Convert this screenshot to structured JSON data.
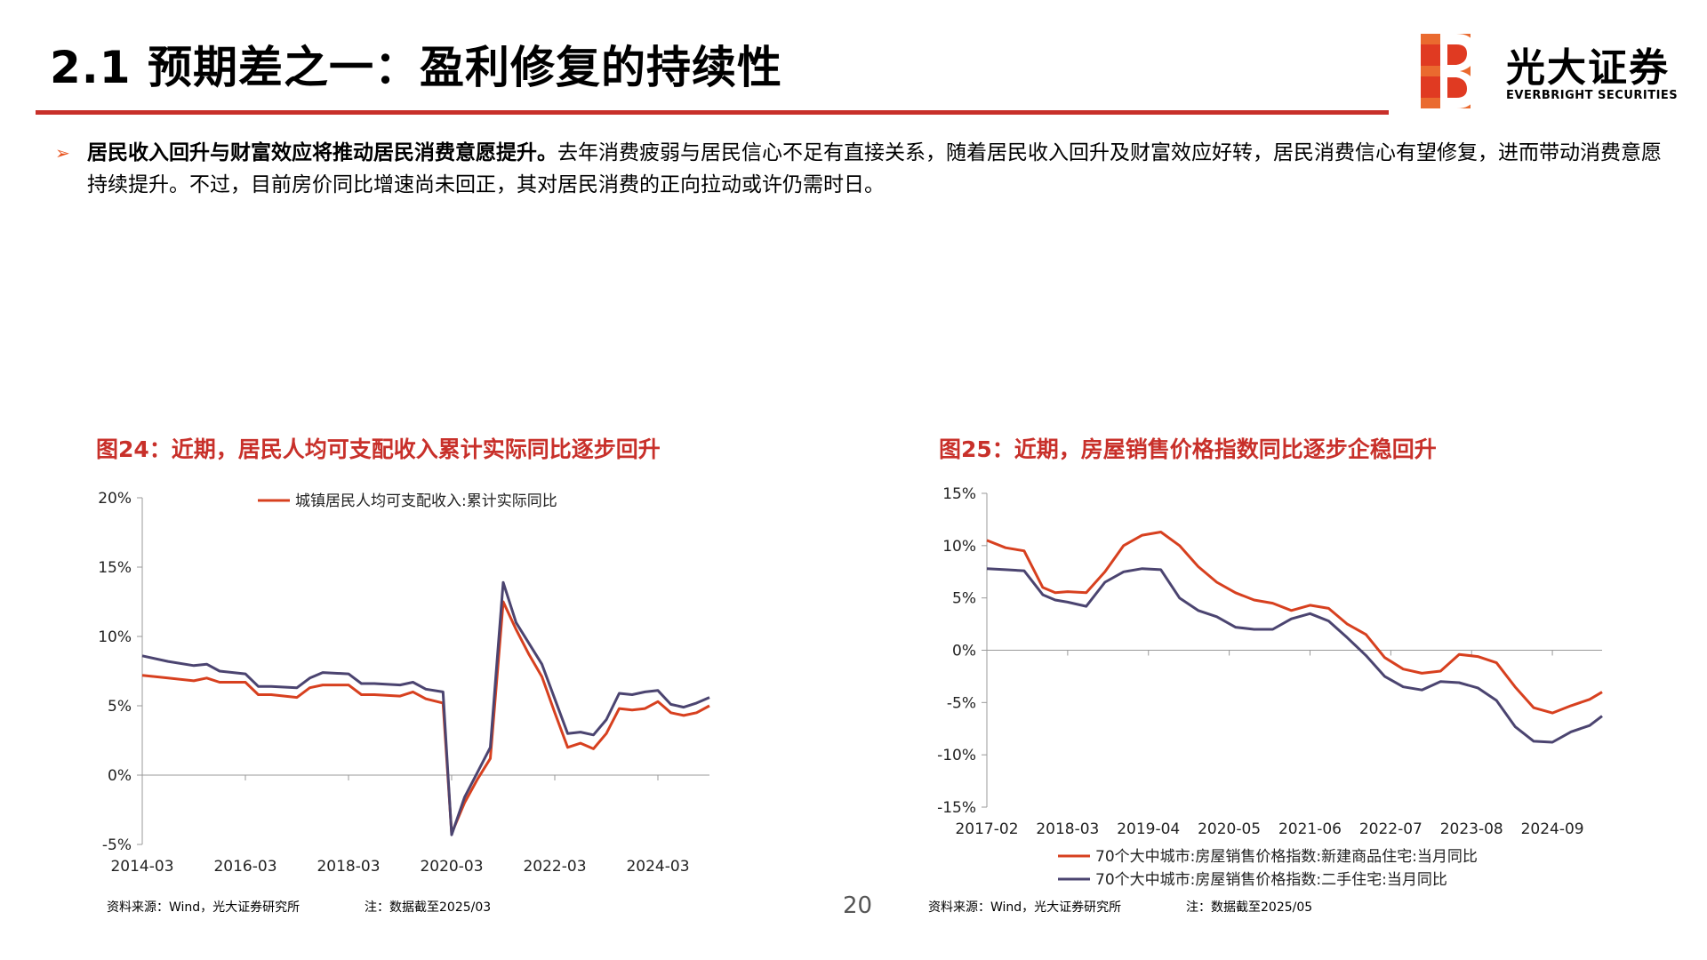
{
  "header": {
    "title": "2.1 预期差之一：盈利修复的持续性",
    "logo_cn": "光大证券",
    "logo_en": "EVERBRIGHT SECURITIES",
    "accent_color": "#c8302a"
  },
  "bullet": {
    "marker": "➢",
    "bold_text": "居民收入回升与财富效应将推动居民消费意愿提升。",
    "text": "去年消费疲弱与居民信心不足有直接关系，随着居民收入回升及财富效应好转，居民消费信心有望修复，进而带动消费意愿持续提升。不过，目前房价同比增速尚未回正，其对居民消费的正向拉动或许仍需时日。"
  },
  "page_number": "20",
  "chart_data": [
    {
      "type": "line",
      "title": "图24：近期，居民人均可支配收入累计实际同比逐步回升",
      "source": "资料来源：Wind，光大证券研究所",
      "note": "注：数据截至2025/03",
      "x_tick_labels": [
        "2014-03",
        "2016-03",
        "2018-03",
        "2020-03",
        "2022-03",
        "2024-03"
      ],
      "x_range": [
        "2014-03",
        "2025-03"
      ],
      "y_tick_labels": [
        "20%",
        "15%",
        "10%",
        "5%",
        "0%",
        "-5%"
      ],
      "ylim": [
        -5,
        20
      ],
      "grid": false,
      "legend": "top",
      "series": [
        {
          "name": "城镇居民人均可支配收入:累计实际同比",
          "color": "#d7401f",
          "points": [
            [
              "2014-03",
              7.2
            ],
            [
              "2014-09",
              7.0
            ],
            [
              "2015-03",
              6.8
            ],
            [
              "2015-06",
              7.0
            ],
            [
              "2015-09",
              6.7
            ],
            [
              "2016-03",
              6.7
            ],
            [
              "2016-06",
              5.8
            ],
            [
              "2016-09",
              5.8
            ],
            [
              "2017-03",
              5.6
            ],
            [
              "2017-06",
              6.3
            ],
            [
              "2017-09",
              6.5
            ],
            [
              "2018-03",
              6.5
            ],
            [
              "2018-06",
              5.8
            ],
            [
              "2018-09",
              5.8
            ],
            [
              "2019-03",
              5.7
            ],
            [
              "2019-06",
              6.0
            ],
            [
              "2019-09",
              5.5
            ],
            [
              "2020-01",
              5.2
            ],
            [
              "2020-03",
              -4.2
            ],
            [
              "2020-06",
              -2.0
            ],
            [
              "2020-09",
              -0.3
            ],
            [
              "2020-12",
              1.2
            ],
            [
              "2021-03",
              12.5
            ],
            [
              "2021-06",
              10.5
            ],
            [
              "2021-09",
              8.7
            ],
            [
              "2021-12",
              7.1
            ],
            [
              "2022-03",
              4.5
            ],
            [
              "2022-06",
              2.0
            ],
            [
              "2022-09",
              2.3
            ],
            [
              "2022-12",
              1.9
            ],
            [
              "2023-03",
              3.0
            ],
            [
              "2023-06",
              4.8
            ],
            [
              "2023-09",
              4.7
            ],
            [
              "2023-12",
              4.8
            ],
            [
              "2024-03",
              5.3
            ],
            [
              "2024-06",
              4.5
            ],
            [
              "2024-09",
              4.3
            ],
            [
              "2024-12",
              4.5
            ],
            [
              "2025-03",
              5.0
            ]
          ]
        },
        {
          "name": "",
          "color": "#4b4470",
          "points": [
            [
              "2014-03",
              8.6
            ],
            [
              "2014-09",
              8.2
            ],
            [
              "2015-03",
              7.9
            ],
            [
              "2015-06",
              8.0
            ],
            [
              "2015-09",
              7.5
            ],
            [
              "2016-03",
              7.3
            ],
            [
              "2016-06",
              6.4
            ],
            [
              "2016-09",
              6.4
            ],
            [
              "2017-03",
              6.3
            ],
            [
              "2017-06",
              7.0
            ],
            [
              "2017-09",
              7.4
            ],
            [
              "2018-03",
              7.3
            ],
            [
              "2018-06",
              6.6
            ],
            [
              "2018-09",
              6.6
            ],
            [
              "2019-03",
              6.5
            ],
            [
              "2019-06",
              6.7
            ],
            [
              "2019-09",
              6.2
            ],
            [
              "2020-01",
              6.0
            ],
            [
              "2020-03",
              -4.3
            ],
            [
              "2020-06",
              -1.6
            ],
            [
              "2020-09",
              0.2
            ],
            [
              "2020-12",
              2.0
            ],
            [
              "2021-03",
              13.9
            ],
            [
              "2021-06",
              11.0
            ],
            [
              "2021-09",
              9.5
            ],
            [
              "2021-12",
              8.0
            ],
            [
              "2022-03",
              5.5
            ],
            [
              "2022-06",
              3.0
            ],
            [
              "2022-09",
              3.1
            ],
            [
              "2022-12",
              2.9
            ],
            [
              "2023-03",
              4.0
            ],
            [
              "2023-06",
              5.9
            ],
            [
              "2023-09",
              5.8
            ],
            [
              "2023-12",
              6.0
            ],
            [
              "2024-03",
              6.1
            ],
            [
              "2024-06",
              5.1
            ],
            [
              "2024-09",
              4.9
            ],
            [
              "2024-12",
              5.2
            ],
            [
              "2025-03",
              5.6
            ]
          ]
        }
      ]
    },
    {
      "type": "line",
      "title": "图25：近期，房屋销售价格指数同比逐步企稳回升",
      "source": "资料来源：Wind，光大证券研究所",
      "note": "注：数据截至2025/05",
      "x_tick_labels": [
        "2017-02",
        "2018-03",
        "2019-04",
        "2020-05",
        "2021-06",
        "2022-07",
        "2023-08",
        "2024-09"
      ],
      "x_range": [
        "2017-02",
        "2025-05"
      ],
      "y_tick_labels": [
        "15%",
        "10%",
        "5%",
        "0%",
        "-5%",
        "-10%",
        "-15%"
      ],
      "ylim": [
        -15,
        15
      ],
      "grid": false,
      "legend": "bottom",
      "series": [
        {
          "name": "70个大中城市:房屋销售价格指数:新建商品住宅:当月同比",
          "color": "#d7401f",
          "points": [
            [
              "2017-02",
              10.5
            ],
            [
              "2017-05",
              9.8
            ],
            [
              "2017-08",
              9.5
            ],
            [
              "2017-11",
              6.0
            ],
            [
              "2018-01",
              5.5
            ],
            [
              "2018-03",
              5.6
            ],
            [
              "2018-06",
              5.5
            ],
            [
              "2018-09",
              7.5
            ],
            [
              "2018-12",
              10.0
            ],
            [
              "2019-03",
              11.0
            ],
            [
              "2019-06",
              11.3
            ],
            [
              "2019-09",
              10.0
            ],
            [
              "2019-12",
              8.0
            ],
            [
              "2020-03",
              6.5
            ],
            [
              "2020-06",
              5.5
            ],
            [
              "2020-09",
              4.8
            ],
            [
              "2020-12",
              4.5
            ],
            [
              "2021-03",
              3.8
            ],
            [
              "2021-06",
              4.3
            ],
            [
              "2021-09",
              4.0
            ],
            [
              "2021-12",
              2.5
            ],
            [
              "2022-03",
              1.5
            ],
            [
              "2022-06",
              -0.7
            ],
            [
              "2022-09",
              -1.8
            ],
            [
              "2022-12",
              -2.2
            ],
            [
              "2023-03",
              -2.0
            ],
            [
              "2023-06",
              -0.4
            ],
            [
              "2023-09",
              -0.6
            ],
            [
              "2023-12",
              -1.2
            ],
            [
              "2024-03",
              -3.5
            ],
            [
              "2024-06",
              -5.5
            ],
            [
              "2024-09",
              -6.0
            ],
            [
              "2024-12",
              -5.3
            ],
            [
              "2025-03",
              -4.7
            ],
            [
              "2025-05",
              -4.0
            ]
          ]
        },
        {
          "name": "70个大中城市:房屋销售价格指数:二手住宅:当月同比",
          "color": "#4b4470",
          "points": [
            [
              "2017-02",
              7.8
            ],
            [
              "2017-05",
              7.7
            ],
            [
              "2017-08",
              7.6
            ],
            [
              "2017-11",
              5.3
            ],
            [
              "2018-01",
              4.8
            ],
            [
              "2018-03",
              4.6
            ],
            [
              "2018-06",
              4.2
            ],
            [
              "2018-09",
              6.5
            ],
            [
              "2018-12",
              7.5
            ],
            [
              "2019-03",
              7.8
            ],
            [
              "2019-06",
              7.7
            ],
            [
              "2019-09",
              5.0
            ],
            [
              "2019-12",
              3.8
            ],
            [
              "2020-03",
              3.2
            ],
            [
              "2020-06",
              2.2
            ],
            [
              "2020-09",
              2.0
            ],
            [
              "2020-12",
              2.0
            ],
            [
              "2021-03",
              3.0
            ],
            [
              "2021-06",
              3.5
            ],
            [
              "2021-09",
              2.8
            ],
            [
              "2021-12",
              1.2
            ],
            [
              "2022-03",
              -0.5
            ],
            [
              "2022-06",
              -2.5
            ],
            [
              "2022-09",
              -3.5
            ],
            [
              "2022-12",
              -3.8
            ],
            [
              "2023-03",
              -3.0
            ],
            [
              "2023-06",
              -3.1
            ],
            [
              "2023-09",
              -3.6
            ],
            [
              "2023-12",
              -4.8
            ],
            [
              "2024-03",
              -7.3
            ],
            [
              "2024-06",
              -8.7
            ],
            [
              "2024-09",
              -8.8
            ],
            [
              "2024-12",
              -7.8
            ],
            [
              "2025-03",
              -7.2
            ],
            [
              "2025-05",
              -6.3
            ]
          ]
        }
      ]
    }
  ]
}
